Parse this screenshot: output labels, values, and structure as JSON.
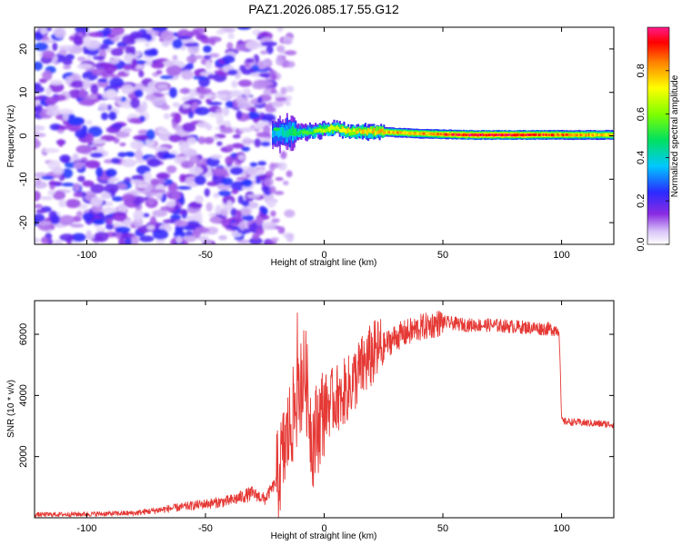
{
  "chart_data": [
    {
      "type": "heatmap",
      "title": "PAZ1.2026.085.17.55.G12",
      "xlabel": "Height of straight line (km)",
      "ylabel": "Frequency (Hz)",
      "xlim": [
        -122,
        122
      ],
      "ylim": [
        -25,
        25
      ],
      "x_ticks": [
        -100,
        -50,
        0,
        50,
        100
      ],
      "y_ticks": [
        -20,
        -10,
        0,
        10,
        20
      ],
      "colorbar": {
        "label": "Normalized spectral amplitude",
        "range": [
          0,
          1
        ],
        "ticks": [
          "0.0",
          "0.2",
          "0.4",
          "0.6",
          "0.8"
        ]
      },
      "noise_region_x": [
        -122,
        -22
      ],
      "signal_track": [
        {
          "x": -22,
          "y": 0.5,
          "amp": 0.35
        },
        {
          "x": -15,
          "y": 0.8,
          "amp": 0.45
        },
        {
          "x": -5,
          "y": 1.0,
          "amp": 0.55
        },
        {
          "x": 0,
          "y": 1.5,
          "amp": 0.65
        },
        {
          "x": 5,
          "y": 1.8,
          "amp": 0.7
        },
        {
          "x": 10,
          "y": 1.0,
          "amp": 0.75
        },
        {
          "x": 20,
          "y": 1.0,
          "amp": 0.75
        },
        {
          "x": 40,
          "y": 0.5,
          "amp": 0.8
        },
        {
          "x": 60,
          "y": 0.2,
          "amp": 0.95
        },
        {
          "x": 80,
          "y": 0.2,
          "amp": 0.95
        },
        {
          "x": 100,
          "y": 0.2,
          "amp": 0.85
        },
        {
          "x": 122,
          "y": 0.2,
          "amp": 0.75
        }
      ]
    },
    {
      "type": "line",
      "xlabel": "Height of straight line (km)",
      "ylabel": "SNR (10 * v/v)",
      "xlim": [
        -122,
        122
      ],
      "ylim": [
        0,
        7100
      ],
      "x_ticks": [
        -100,
        -50,
        0,
        50,
        100
      ],
      "y_ticks": [
        2000,
        4000,
        6000
      ],
      "color": "#e53935",
      "series": [
        {
          "name": "SNR",
          "x": [
            -122,
            -100,
            -80,
            -70,
            -60,
            -50,
            -40,
            -30,
            -25,
            -20,
            -15,
            -10,
            -8,
            -5,
            0,
            5,
            10,
            15,
            20,
            30,
            40,
            50,
            60,
            70,
            80,
            90,
            99,
            100,
            101,
            110,
            122
          ],
          "values": [
            100,
            120,
            150,
            250,
            350,
            450,
            550,
            800,
            600,
            1200,
            2800,
            4200,
            4800,
            2500,
            3600,
            3900,
            4200,
            4800,
            5300,
            5900,
            6200,
            6400,
            6300,
            6300,
            6250,
            6200,
            6150,
            3200,
            3150,
            3100,
            3050
          ]
        }
      ]
    }
  ]
}
